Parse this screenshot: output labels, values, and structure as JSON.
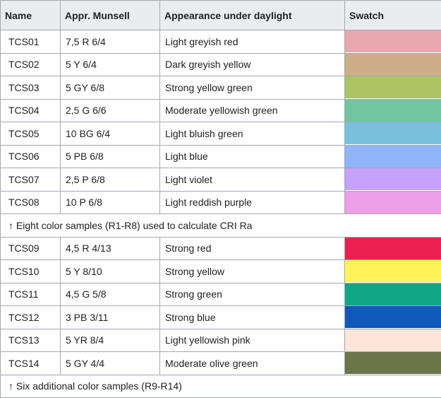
{
  "table": {
    "headers": [
      "Name",
      "Appr. Munsell",
      "Appearance under daylight",
      "Swatch"
    ],
    "group1": [
      {
        "name": "TCS01",
        "munsell": "7,5 R 6/4",
        "appearance": "Light greyish red",
        "color": "#e8a8b0"
      },
      {
        "name": "TCS02",
        "munsell": "5 Y 6/4",
        "appearance": "Dark greyish yellow",
        "color": "#ceae86"
      },
      {
        "name": "TCS03",
        "munsell": "5 GY 6/8",
        "appearance": "Strong yellow green",
        "color": "#aac466"
      },
      {
        "name": "TCS04",
        "munsell": "2,5 G 6/6",
        "appearance": "Moderate yellowish green",
        "color": "#72c69e"
      },
      {
        "name": "TCS05",
        "munsell": "10 BG 6/4",
        "appearance": "Light bluish green",
        "color": "#78c0de"
      },
      {
        "name": "TCS06",
        "munsell": "5 PB 6/8",
        "appearance": "Light blue",
        "color": "#8eb4fa"
      },
      {
        "name": "TCS07",
        "munsell": "2,5 P 6/8",
        "appearance": "Light violet",
        "color": "#c6a2fa"
      },
      {
        "name": "TCS08",
        "munsell": "10 P 6/8",
        "appearance": "Light reddish purple",
        "color": "#eea0e8"
      }
    ],
    "note1": "↑ Eight color samples (R1-R8) used to calculate CRI Ra",
    "group2": [
      {
        "name": "TCS09",
        "munsell": "4,5 R 4/13",
        "appearance": "Strong red",
        "color": "#ec2050"
      },
      {
        "name": "TCS10",
        "munsell": "5 Y 8/10",
        "appearance": "Strong yellow",
        "color": "#fef258"
      },
      {
        "name": "TCS11",
        "munsell": "4,5 G 5/8",
        "appearance": "Strong green",
        "color": "#12a686"
      },
      {
        "name": "TCS12",
        "munsell": "3 PB 3/11",
        "appearance": "Strong blue",
        "color": "#1258bc"
      },
      {
        "name": "TCS13",
        "munsell": "5 YR 8/4",
        "appearance": "Light yellowish pink",
        "color": "#fde6d8"
      },
      {
        "name": "TCS14",
        "munsell": "5 GY 4/4",
        "appearance": "Moderate olive green",
        "color": "#6a7648"
      }
    ],
    "note2": "↑ Six additional color samples (R9-R14)"
  }
}
